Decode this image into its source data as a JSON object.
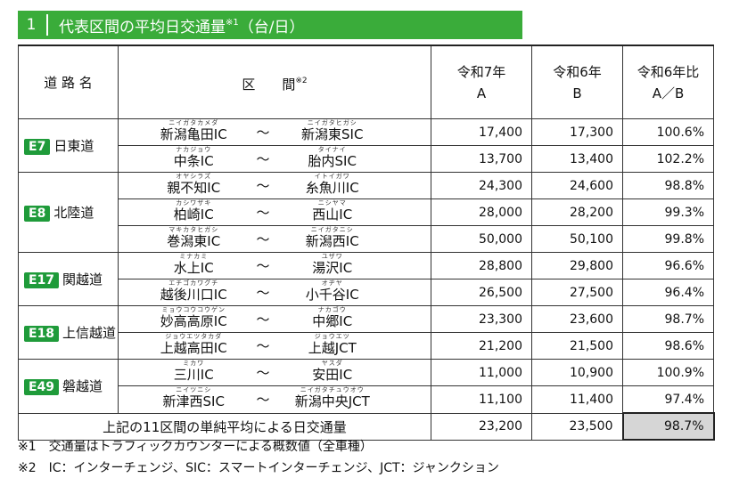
{
  "title": {
    "number": "1",
    "text": "代表区間の平均日交通量",
    "mark": "※1",
    "unit": "（台/日）"
  },
  "header": {
    "route": "道 路 名",
    "section": "区　　間",
    "section_mark": "※2",
    "col_a_line1": "令和7年",
    "col_a_line2": "A",
    "col_b_line1": "令和6年",
    "col_b_line2": "B",
    "col_ratio_line1": "令和6年比",
    "col_ratio_line2": "A／B"
  },
  "tilde": "～",
  "routes": [
    {
      "badge": "E7",
      "name": "日東道"
    },
    {
      "badge": "E8",
      "name": "北陸道"
    },
    {
      "badge": "E17",
      "name": "関越道"
    },
    {
      "badge": "E18",
      "name": "上信越道"
    },
    {
      "badge": "E49",
      "name": "磐越道"
    }
  ],
  "rows": [
    {
      "from": "新潟亀田IC",
      "from_ruby": "ニイガタカメダ",
      "to": "新潟東SIC",
      "to_ruby": "ニイガタヒガシ",
      "a": "17,400",
      "b": "17,300",
      "ratio": "100.6%"
    },
    {
      "from": "中条IC",
      "from_ruby": "ナカジョウ",
      "to": "胎内SIC",
      "to_ruby": "タイナイ",
      "a": "13,700",
      "b": "13,400",
      "ratio": "102.2%"
    },
    {
      "from": "親不知IC",
      "from_ruby": "オヤシラズ",
      "to": "糸魚川IC",
      "to_ruby": "イトイガワ",
      "a": "24,300",
      "b": "24,600",
      "ratio": "98.8%"
    },
    {
      "from": "柏崎IC",
      "from_ruby": "カシワザキ",
      "to": "西山IC",
      "to_ruby": "ニシヤマ",
      "a": "28,000",
      "b": "28,200",
      "ratio": "99.3%"
    },
    {
      "from": "巻潟東IC",
      "from_ruby": "マキカタヒガシ",
      "to": "新潟西IC",
      "to_ruby": "ニイガタニシ",
      "a": "50,000",
      "b": "50,100",
      "ratio": "99.8%"
    },
    {
      "from": "水上IC",
      "from_ruby": "ミナカミ",
      "to": "湯沢IC",
      "to_ruby": "ユザワ",
      "a": "28,800",
      "b": "29,800",
      "ratio": "96.6%"
    },
    {
      "from": "越後川口IC",
      "from_ruby": "エチゴカワグチ",
      "to": "小千谷IC",
      "to_ruby": "オヂヤ",
      "a": "26,500",
      "b": "27,500",
      "ratio": "96.4%"
    },
    {
      "from": "妙高高原IC",
      "from_ruby": "ミョウコウコウゲン",
      "to": "中郷IC",
      "to_ruby": "ナカゴウ",
      "a": "23,300",
      "b": "23,600",
      "ratio": "98.7%"
    },
    {
      "from": "上越高田IC",
      "from_ruby": "ジョウエツタカダ",
      "to": "上越JCT",
      "to_ruby": "ジョウエツ",
      "a": "21,200",
      "b": "21,500",
      "ratio": "98.6%"
    },
    {
      "from": "三川IC",
      "from_ruby": "ミカワ",
      "to": "安田IC",
      "to_ruby": "ヤスダ",
      "a": "11,000",
      "b": "10,900",
      "ratio": "100.9%"
    },
    {
      "from": "新津西SIC",
      "from_ruby": "ニイツニシ",
      "to": "新潟中央JCT",
      "to_ruby": "ニイガタチュウオウ",
      "a": "11,100",
      "b": "11,400",
      "ratio": "97.4%"
    }
  ],
  "total": {
    "label": "上記の11区間の単純平均による日交通量",
    "a": "23,200",
    "b": "23,500",
    "ratio": "98.7%"
  },
  "notes": [
    "※1　交通量はトラフィックカウンターによる概数値（全車種）",
    "※2　IC：インターチェンジ、SIC：スマートインターチェンジ、JCT：ジャンクション"
  ],
  "colors": {
    "title_bar": "#3aac3a",
    "badge": "#1f9b3a",
    "highlight_cell": "#d6d6d6"
  }
}
